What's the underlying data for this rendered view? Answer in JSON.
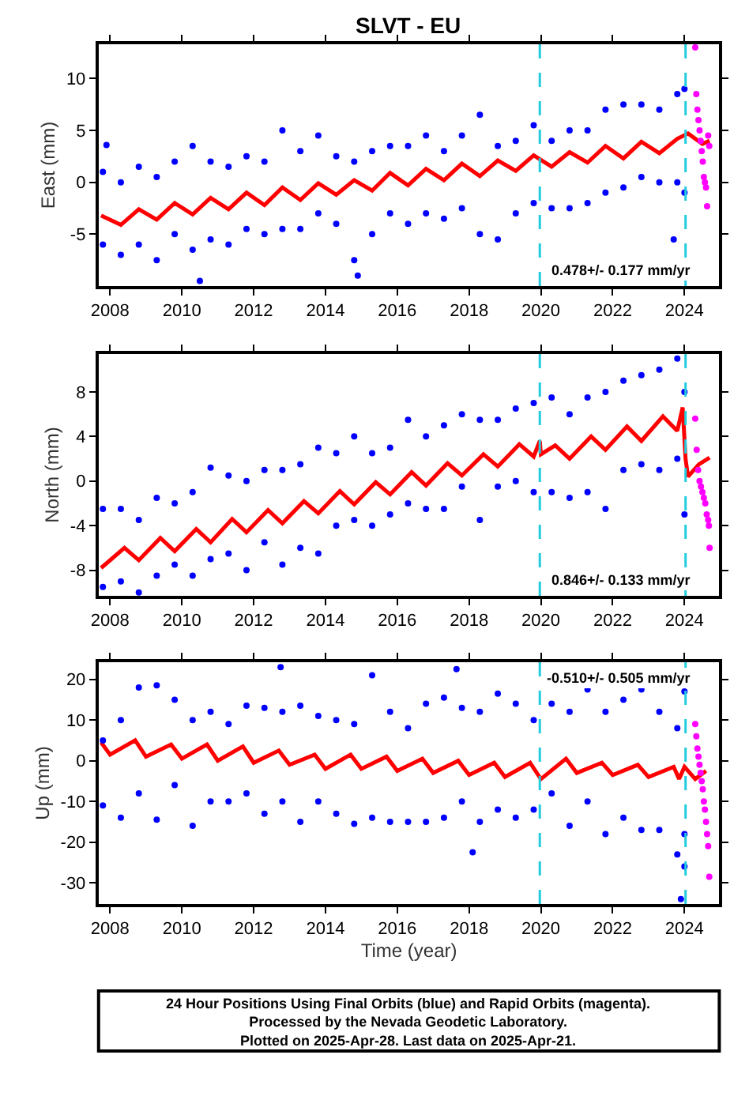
{
  "chart_data": [
    {
      "type": "scatter",
      "title": "SLVT - EU",
      "ylabel": "East (mm)",
      "xlim": [
        2007.68,
        2024.97
      ],
      "xticks": [
        2008,
        2010,
        2012,
        2014,
        2016,
        2018,
        2020,
        2022,
        2024
      ],
      "ylim": [
        -10,
        13.3
      ],
      "yticks": [
        -5,
        0,
        5,
        10
      ],
      "line_style": "solid",
      "annotations": [
        "0.478+/- 0.177 mm/yr"
      ],
      "ref_lines": [
        {
          "axis": "x",
          "value": 2019.97,
          "color": "#22ccdd",
          "line_style": "dashed"
        },
        {
          "axis": "x",
          "value": 2024.03,
          "color": "#22ccdd",
          "line_style": "dashed"
        }
      ],
      "series": [
        {
          "color": "#0000ff",
          "marker": "circle",
          "x": [
            2007.8,
            2007.8,
            2008.3,
            2008.3,
            2008.8,
            2008.8,
            2009.3,
            2009.3,
            2009.8,
            2009.8,
            2010.3,
            2010.3,
            2010.8,
            2010.8,
            2011.3,
            2011.3,
            2011.8,
            2011.8,
            2012.3,
            2012.3,
            2012.8,
            2012.8,
            2013.3,
            2013.3,
            2013.8,
            2013.8,
            2014.3,
            2014.3,
            2014.8,
            2014.8,
            2015.3,
            2015.3,
            2015.8,
            2015.8,
            2016.3,
            2016.3,
            2016.8,
            2016.8,
            2017.3,
            2017.3,
            2017.8,
            2017.8,
            2018.3,
            2018.3,
            2018.8,
            2018.8,
            2019.3,
            2019.3,
            2019.8,
            2019.8,
            2020.3,
            2020.3,
            2020.8,
            2020.8,
            2021.3,
            2021.3,
            2021.8,
            2021.8,
            2022.3,
            2022.3,
            2022.8,
            2022.8,
            2023.3,
            2023.3,
            2023.8,
            2023.8,
            2007.9,
            2010.5,
            2014.9,
            2023.7,
            2024.0,
            2024.0
          ],
          "values": [
            1,
            -6,
            0,
            -7,
            1.5,
            -6,
            0.5,
            -7.5,
            2,
            -5,
            3.5,
            -6.5,
            2,
            -5.5,
            1.5,
            -6,
            2.5,
            -4.5,
            2,
            -5,
            5,
            -4.5,
            3,
            -4.5,
            4.5,
            -3,
            2.5,
            -4,
            2,
            -7.5,
            3,
            -5,
            3.5,
            -3,
            3.5,
            -4,
            4.5,
            -3,
            3,
            -3.5,
            4.5,
            -2.5,
            6.5,
            -5,
            3.5,
            -5.5,
            4,
            -3,
            5.5,
            -2,
            4,
            -2.5,
            5,
            -2.5,
            5,
            -2,
            7,
            -1,
            7.5,
            -0.5,
            7.5,
            0.5,
            7,
            0,
            8.5,
            0,
            3.6,
            -9.5,
            -9,
            -5.5,
            9,
            -1
          ]
        },
        {
          "color": "#ff00ff",
          "marker": "circle",
          "x": [
            2024.3,
            2024.33,
            2024.36,
            2024.39,
            2024.42,
            2024.45,
            2024.48,
            2024.51,
            2024.54,
            2024.57,
            2024.6,
            2024.63,
            2024.66,
            2024.69
          ],
          "values": [
            13,
            8.5,
            7,
            6,
            5,
            4,
            3,
            2,
            0.5,
            0,
            -0.5,
            -2.3,
            4.5,
            3.5
          ]
        },
        {
          "type": "line",
          "color": "#ff0000",
          "x": [
            2007.75,
            2008.3,
            2008.8,
            2009.3,
            2009.8,
            2010.3,
            2010.8,
            2011.3,
            2011.8,
            2012.3,
            2012.8,
            2013.3,
            2013.8,
            2014.3,
            2014.8,
            2015.3,
            2015.8,
            2016.3,
            2016.8,
            2017.3,
            2017.8,
            2018.3,
            2018.8,
            2019.3,
            2019.8,
            2020.3,
            2020.8,
            2021.3,
            2021.8,
            2022.3,
            2022.8,
            2023.3,
            2023.8,
            2024.1,
            2024.5,
            2024.7
          ],
          "values": [
            -3.2,
            -4.1,
            -2.6,
            -3.6,
            -2.0,
            -3.1,
            -1.5,
            -2.6,
            -1.0,
            -2.2,
            -0.5,
            -1.7,
            -0.1,
            -1.2,
            0.2,
            -0.8,
            0.9,
            -0.3,
            1.3,
            0.2,
            1.8,
            0.6,
            2.1,
            1.1,
            2.6,
            1.5,
            2.9,
            1.9,
            3.5,
            2.3,
            3.9,
            2.8,
            4.2,
            4.7,
            3.7,
            4.0
          ]
        }
      ]
    },
    {
      "type": "scatter",
      "ylabel": "North (mm)",
      "xlim": [
        2007.68,
        2024.97
      ],
      "xticks": [
        2008,
        2010,
        2012,
        2014,
        2016,
        2018,
        2020,
        2022,
        2024
      ],
      "ylim": [
        -10.3,
        11.4
      ],
      "yticks": [
        -8,
        -4,
        0,
        4,
        8
      ],
      "line_style": "solid",
      "annotations": [
        "0.846+/- 0.133 mm/yr"
      ],
      "ref_lines": [
        {
          "axis": "x",
          "value": 2019.97,
          "color": "#22ccdd",
          "line_style": "dashed"
        },
        {
          "axis": "x",
          "value": 2024.03,
          "color": "#22ccdd",
          "line_style": "dashed"
        }
      ],
      "series": [
        {
          "color": "#0000ff",
          "marker": "circle",
          "x": [
            2007.8,
            2007.8,
            2008.3,
            2008.3,
            2008.8,
            2008.8,
            2009.3,
            2009.3,
            2009.8,
            2009.8,
            2010.3,
            2010.3,
            2010.8,
            2010.8,
            2011.3,
            2011.3,
            2011.8,
            2011.8,
            2012.3,
            2012.3,
            2012.8,
            2012.8,
            2013.3,
            2013.3,
            2013.8,
            2013.8,
            2014.3,
            2014.3,
            2014.8,
            2014.8,
            2015.3,
            2015.3,
            2015.8,
            2015.8,
            2016.3,
            2016.3,
            2016.8,
            2016.8,
            2017.3,
            2017.3,
            2017.8,
            2017.8,
            2018.3,
            2018.3,
            2018.8,
            2018.8,
            2019.3,
            2019.3,
            2019.8,
            2019.8,
            2020.3,
            2020.3,
            2020.8,
            2020.8,
            2021.3,
            2021.3,
            2021.8,
            2021.8,
            2022.3,
            2022.3,
            2022.8,
            2022.8,
            2023.3,
            2023.3,
            2023.8,
            2023.8,
            2024.0,
            2024.0
          ],
          "values": [
            -2.5,
            -9.5,
            -2.5,
            -9,
            -3.5,
            -10,
            -1.5,
            -8.5,
            -2,
            -7.5,
            -1,
            -8.5,
            1.2,
            -7,
            0.5,
            -6.5,
            0,
            -8,
            1,
            -5.5,
            1,
            -7.5,
            1.5,
            -6,
            3,
            -6.5,
            2.5,
            -4,
            4,
            -3.5,
            2.5,
            -4,
            3,
            -3,
            5.5,
            -2,
            4,
            -2.5,
            5,
            -2.5,
            6,
            -0.5,
            5.5,
            -3.5,
            5.5,
            -0.5,
            6.5,
            0,
            7,
            -1,
            7.5,
            -1,
            6,
            -1.5,
            7.5,
            -1,
            8,
            -2.5,
            9,
            1,
            9.5,
            1.5,
            10,
            1,
            11,
            2,
            8,
            -3
          ]
        },
        {
          "color": "#ff00ff",
          "marker": "circle",
          "x": [
            2024.3,
            2024.34,
            2024.38,
            2024.42,
            2024.46,
            2024.5,
            2024.54,
            2024.58,
            2024.62,
            2024.66,
            2024.68,
            2024.7
          ],
          "values": [
            5.6,
            2.8,
            1,
            0,
            -0.5,
            -1,
            -1.5,
            -2,
            -3,
            -3.5,
            -4,
            -6
          ]
        },
        {
          "type": "line",
          "color": "#ff0000",
          "x": [
            2007.75,
            2008.4,
            2008.8,
            2009.4,
            2009.8,
            2010.4,
            2010.8,
            2011.4,
            2011.8,
            2012.4,
            2012.8,
            2013.4,
            2013.8,
            2014.4,
            2014.8,
            2015.4,
            2015.8,
            2016.4,
            2016.8,
            2017.4,
            2017.8,
            2018.4,
            2018.8,
            2019.4,
            2019.8,
            2019.97,
            2020.0,
            2020.4,
            2020.8,
            2021.4,
            2021.8,
            2022.4,
            2022.8,
            2023.4,
            2023.8,
            2023.95,
            2024.03,
            2024.1,
            2024.4,
            2024.7
          ],
          "values": [
            -7.8,
            -6.0,
            -7.1,
            -5.1,
            -6.3,
            -4.3,
            -5.5,
            -3.4,
            -4.6,
            -2.6,
            -3.8,
            -1.8,
            -2.9,
            -0.9,
            -2.1,
            -0.1,
            -1.2,
            0.8,
            -0.4,
            1.6,
            0.5,
            2.4,
            1.3,
            3.3,
            2.2,
            3.6,
            2.4,
            3.2,
            2.0,
            4.0,
            2.8,
            4.9,
            3.6,
            5.8,
            4.5,
            6.6,
            2.0,
            0.4,
            1.5,
            2.1
          ]
        }
      ]
    },
    {
      "type": "scatter",
      "ylabel": "Up (mm)",
      "xlabel": "Time (year)",
      "xlim": [
        2007.68,
        2024.97
      ],
      "xticks": [
        2008,
        2010,
        2012,
        2014,
        2016,
        2018,
        2020,
        2022,
        2024
      ],
      "ylim": [
        -35.2,
        24.2
      ],
      "yticks": [
        -30,
        -20,
        -10,
        0,
        10,
        20
      ],
      "line_style": "solid",
      "annotations": [
        "-0.510+/- 0.505 mm/yr"
      ],
      "ref_lines": [
        {
          "axis": "x",
          "value": 2019.97,
          "color": "#22ccdd",
          "line_style": "dashed"
        },
        {
          "axis": "x",
          "value": 2024.03,
          "color": "#22ccdd",
          "line_style": "dashed"
        }
      ],
      "series": [
        {
          "color": "#0000ff",
          "marker": "circle",
          "x": [
            2007.8,
            2007.8,
            2008.3,
            2008.3,
            2008.8,
            2008.8,
            2009.3,
            2009.3,
            2009.8,
            2009.8,
            2010.3,
            2010.3,
            2010.8,
            2010.8,
            2011.3,
            2011.3,
            2011.8,
            2011.8,
            2012.3,
            2012.3,
            2012.8,
            2012.8,
            2013.3,
            2013.3,
            2013.8,
            2013.8,
            2014.3,
            2014.3,
            2014.8,
            2014.8,
            2015.3,
            2015.3,
            2015.8,
            2015.8,
            2016.3,
            2016.3,
            2016.8,
            2016.8,
            2017.3,
            2017.3,
            2017.8,
            2017.8,
            2018.3,
            2018.3,
            2018.8,
            2018.8,
            2019.3,
            2019.3,
            2019.8,
            2019.8,
            2020.3,
            2020.3,
            2020.8,
            2020.8,
            2021.3,
            2021.3,
            2021.8,
            2021.8,
            2022.3,
            2022.3,
            2022.8,
            2022.8,
            2023.3,
            2023.3,
            2023.8,
            2023.8,
            2024.0,
            2024.0,
            2012.75,
            2017.65,
            2018.1,
            2023.9,
            2024.0
          ],
          "values": [
            5,
            -11,
            10,
            -14,
            18,
            -8,
            18.5,
            -14.5,
            15,
            -6,
            10,
            -16,
            12,
            -10,
            9,
            -10,
            13.5,
            -8,
            13,
            -13,
            12,
            -10,
            13.5,
            -15,
            11,
            -10,
            10,
            -13,
            9,
            -15.5,
            21,
            -14,
            12,
            -15,
            8,
            -15,
            14,
            -15,
            15.5,
            -14,
            13,
            -10,
            12,
            -15,
            16.5,
            -12,
            14,
            -14,
            10,
            -12,
            14,
            -8,
            12,
            -16,
            17.5,
            -10,
            12,
            -18,
            15,
            -14,
            17.5,
            -17,
            12,
            -17,
            8,
            -23,
            17,
            -18,
            23,
            22.5,
            -22.5,
            -34,
            -26
          ]
        },
        {
          "color": "#ff00ff",
          "marker": "circle",
          "x": [
            2024.3,
            2024.33,
            2024.36,
            2024.39,
            2024.42,
            2024.45,
            2024.48,
            2024.51,
            2024.54,
            2024.57,
            2024.6,
            2024.63,
            2024.66,
            2024.69
          ],
          "values": [
            9,
            6,
            3,
            1,
            -1,
            -3,
            -5,
            -7,
            -10,
            -12,
            -15,
            -18,
            -21,
            -28.5
          ]
        },
        {
          "type": "line",
          "color": "#ff0000",
          "x": [
            2007.75,
            2008.0,
            2008.7,
            2009.0,
            2009.7,
            2010.0,
            2010.7,
            2011.0,
            2011.7,
            2012.0,
            2012.7,
            2013.0,
            2013.7,
            2014.0,
            2014.7,
            2015.0,
            2015.7,
            2016.0,
            2016.7,
            2017.0,
            2017.7,
            2018.0,
            2018.7,
            2019.0,
            2019.7,
            2020.0,
            2020.7,
            2021.0,
            2021.7,
            2022.0,
            2022.7,
            2023.0,
            2023.7,
            2023.85,
            2024.0,
            2024.3,
            2024.6
          ],
          "values": [
            4.5,
            1.5,
            5,
            1,
            4,
            0.5,
            4,
            0,
            3.5,
            -0.5,
            2.5,
            -1,
            1.5,
            -2,
            1.5,
            -2,
            1,
            -2.5,
            0.5,
            -3,
            0,
            -3.5,
            -0.5,
            -4,
            -0.5,
            -4.5,
            0.5,
            -3,
            -0.5,
            -3.5,
            -1,
            -4,
            -1.5,
            -4.5,
            -1.5,
            -4.5,
            -2.5
          ]
        }
      ]
    },
    {
      "type": "other",
      "annotations": [
        "24 Hour Positions Using Final Orbits (blue) and Rapid Orbits (magenta).",
        "Processed by the Nevada Geodetic Laboratory.",
        "Plotted on 2025-Apr-28. Last data on 2025-Apr-21."
      ]
    }
  ]
}
